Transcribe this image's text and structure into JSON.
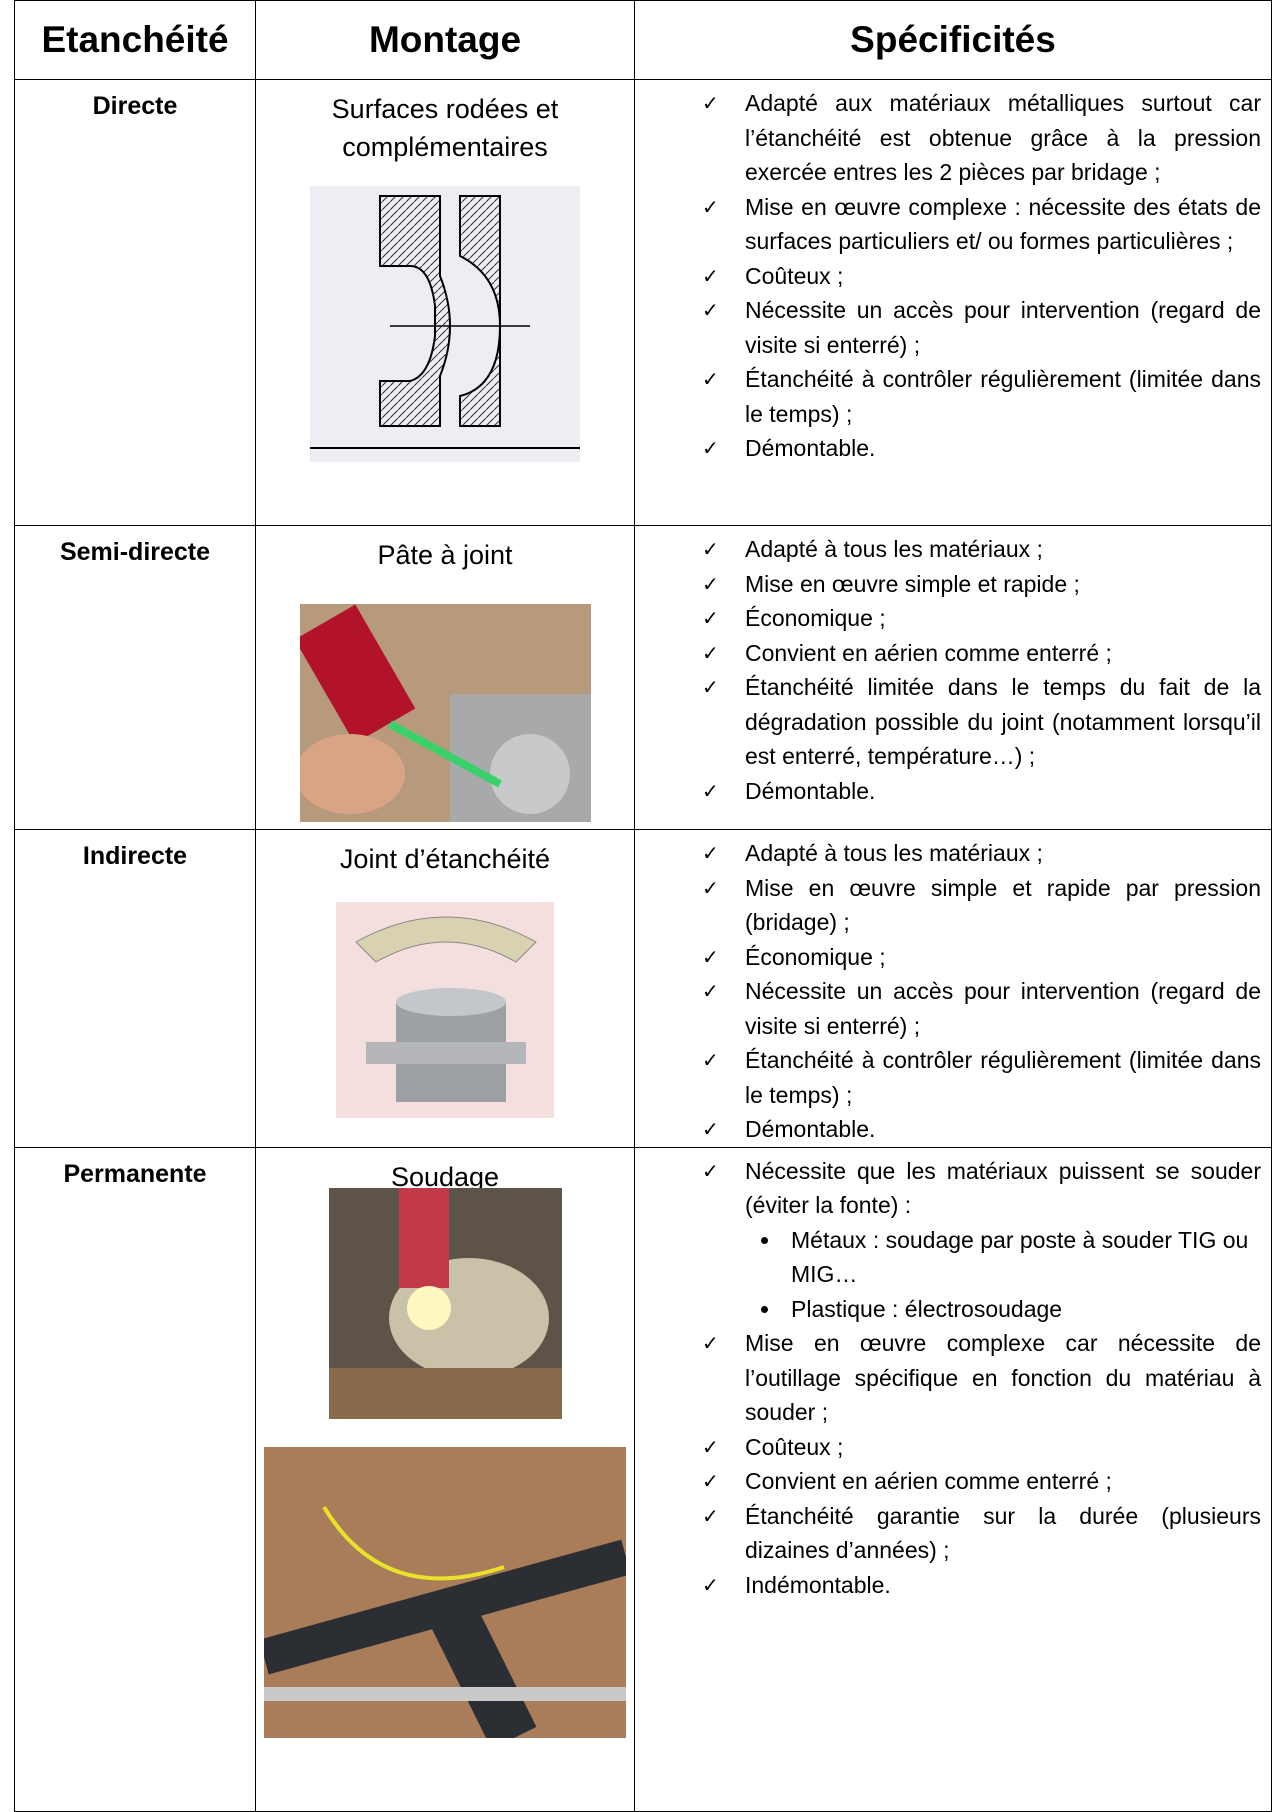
{
  "table": {
    "header": [
      "Etanchéité",
      "Montage",
      "Spécificités"
    ],
    "rows": [
      {
        "type": "Directe",
        "montage": "Surfaces rodées et complémentaires",
        "specs": [
          {
            "text": "Adapté aux matériaux métalliques surtout car l’étanchéité est obtenue grâce à la pression exercée entres les 2 pièces par bridage ;"
          },
          {
            "text": "Mise en œuvre complexe : nécessite des états de surfaces particuliers et/ ou formes particulières ;"
          },
          {
            "text": "Coûteux ;"
          },
          {
            "text": "Nécessite un accès pour intervention (regard de visite si enterré) ;"
          },
          {
            "text": "Étanchéité à contrôler régulièrement (limitée dans le temps) ;"
          },
          {
            "text": "Démontable."
          }
        ]
      },
      {
        "type": "Semi-directe",
        "montage": "Pâte à joint",
        "specs": [
          {
            "text": "Adapté à tous les matériaux ;"
          },
          {
            "text": "Mise en œuvre simple et rapide ;"
          },
          {
            "text": "Économique ;"
          },
          {
            "text": "Convient en aérien comme enterré ;"
          },
          {
            "text": "Étanchéité limitée dans le temps du fait de la dégradation possible du joint (notamment lorsqu’il est enterré, température…) ;"
          },
          {
            "text": "Démontable."
          }
        ]
      },
      {
        "type": "Indirecte",
        "montage": "Joint d’étanchéité",
        "specs": [
          {
            "text": "Adapté à tous les matériaux ;"
          },
          {
            "text": "Mise en œuvre simple et rapide par pression (bridage) ;"
          },
          {
            "text": "Économique ;"
          },
          {
            "text": "Nécessite un accès pour intervention (regard de visite si enterré) ;"
          },
          {
            "text": "Étanchéité à contrôler régulièrement (limitée dans le temps) ;"
          },
          {
            "text": "Démontable."
          }
        ]
      },
      {
        "type": "Permanente",
        "montage": "Soudage",
        "specs": [
          {
            "text": "Nécessite que les matériaux puissent se souder (éviter la fonte) :",
            "sub": [
              "Métaux : soudage par poste à souder TIG ou MIG…",
              "Plastique : électrosoudage"
            ]
          },
          {
            "text": "Mise en œuvre complexe car nécessite de l’outillage spécifique en fonction du matériau à souder ;"
          },
          {
            "text": "Coûteux ;"
          },
          {
            "text": "Convient en aérien comme enterré ;"
          },
          {
            "text": "Étanchéité garantie sur la durée (plusieurs dizaines d’années) ;"
          },
          {
            "text": "Indémontable."
          }
        ]
      }
    ]
  }
}
